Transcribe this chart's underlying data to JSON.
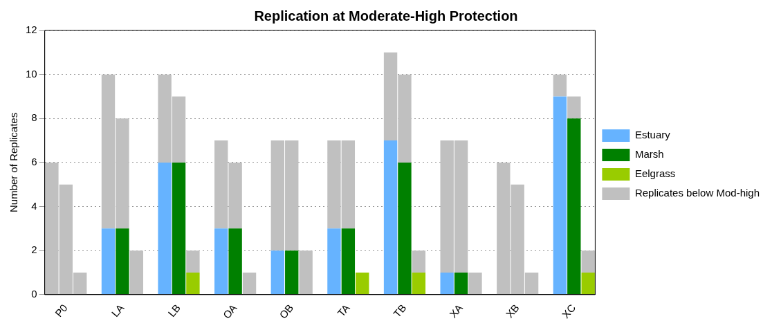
{
  "chart_data": {
    "type": "bar",
    "title": "Replication at Moderate-High Protection",
    "ylabel": "Number of Replicates",
    "categories": [
      null,
      "P0",
      null,
      null,
      null,
      "LA",
      null,
      null,
      null,
      "LB",
      null,
      null,
      null,
      "OA",
      null,
      null,
      null,
      "OB",
      null,
      null,
      null,
      "TA",
      null,
      null,
      null,
      "TB",
      null,
      null,
      null,
      "XA",
      null,
      null,
      null,
      "XB",
      null,
      null,
      null,
      "XC",
      null
    ],
    "stacked": true,
    "series": [
      {
        "name": "Estuary",
        "color": "#66b3ff",
        "values": [
          0,
          null,
          null,
          null,
          3,
          null,
          null,
          null,
          6,
          null,
          null,
          null,
          3,
          null,
          null,
          null,
          2,
          null,
          null,
          null,
          3,
          null,
          null,
          null,
          7,
          null,
          null,
          null,
          1,
          null,
          null,
          null,
          0,
          null,
          null,
          null,
          9,
          null,
          null
        ]
      },
      {
        "name": "Marsh",
        "color": "#008000",
        "values": [
          null,
          0,
          null,
          null,
          null,
          3,
          null,
          null,
          null,
          6,
          null,
          null,
          null,
          3,
          null,
          null,
          null,
          2,
          null,
          null,
          null,
          3,
          null,
          null,
          null,
          6,
          null,
          null,
          null,
          1,
          null,
          null,
          null,
          0,
          null,
          null,
          null,
          8,
          null
        ]
      },
      {
        "name": "Eelgrass",
        "color": "#99cc00",
        "values": [
          null,
          null,
          0,
          null,
          null,
          null,
          0,
          null,
          null,
          null,
          1,
          null,
          null,
          null,
          0,
          null,
          null,
          null,
          0,
          null,
          null,
          null,
          1,
          null,
          null,
          null,
          1,
          null,
          null,
          null,
          0,
          null,
          null,
          null,
          0,
          null,
          null,
          null,
          1
        ]
      },
      {
        "name": "Replicates below Mod-high",
        "color": "#c0c0c0",
        "values": [
          6,
          5,
          1,
          null,
          7,
          5,
          2,
          null,
          4,
          3,
          1,
          null,
          4,
          3,
          1,
          null,
          5,
          5,
          2,
          null,
          4,
          4,
          0,
          null,
          4,
          4,
          1,
          null,
          6,
          6,
          1,
          null,
          6,
          5,
          1,
          null,
          1,
          1,
          1
        ]
      }
    ],
    "ylim": [
      0,
      12
    ],
    "yticks": [
      0,
      2,
      4,
      6,
      8,
      10,
      12
    ],
    "grid": "y",
    "legend": "right"
  }
}
